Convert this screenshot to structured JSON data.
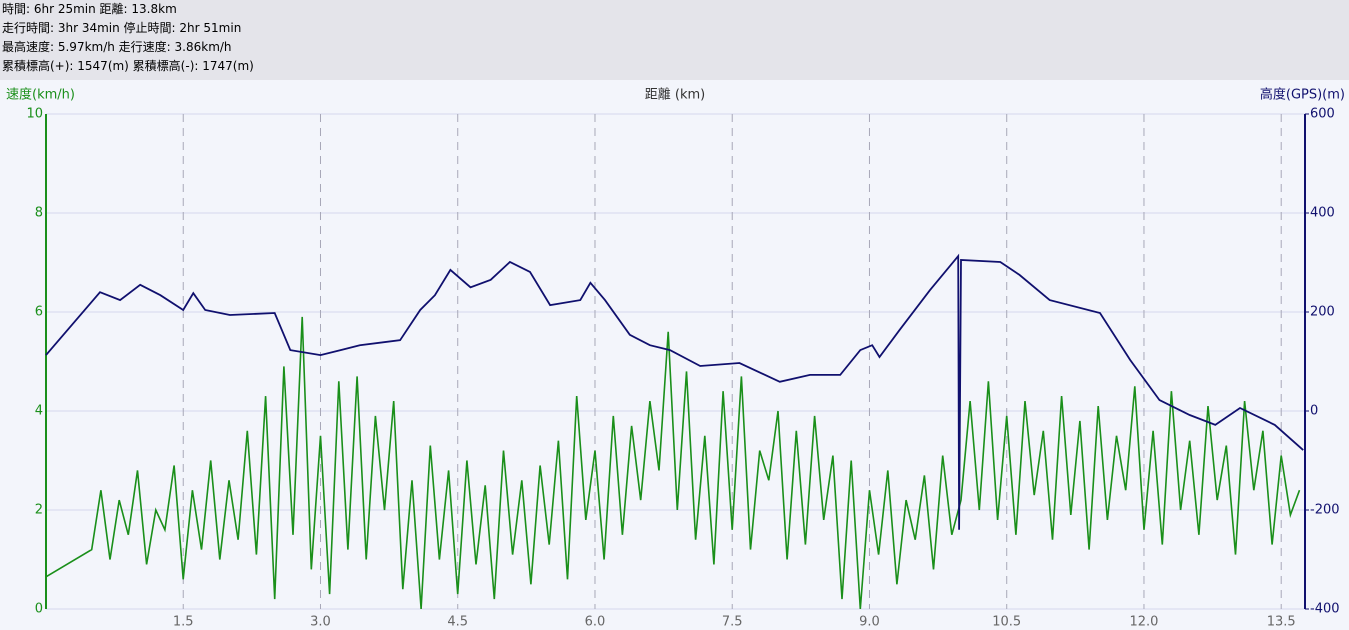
{
  "chart_data": {
    "type": "line",
    "header_lines": [
      "時間: 6hr 25min 距離: 13.8km",
      "走行時間: 3hr 34min 停止時間: 2hr 51min",
      "最高速度: 5.97km/h 走行速度: 3.86km/h",
      "累積標高(+): 1547(m) 累積標高(-): 1747(m)"
    ],
    "y_label": "速度(km/h)",
    "x_label": "距離 (km)",
    "y2_label": "高度(GPS)(m)",
    "xlim": [
      0,
      13.76
    ],
    "ylim": [
      0,
      10
    ],
    "y2lim": [
      -400,
      600
    ],
    "xticks": [
      1.5,
      {
        "value": 3,
        "label": "3.0"
      },
      4.5,
      {
        "value": 6,
        "label": "6.0"
      },
      7.5,
      {
        "value": 9,
        "label": "9.0"
      },
      10.5,
      {
        "value": 12,
        "label": "12.0"
      },
      13.5
    ],
    "yticks": [
      0,
      2,
      4,
      6,
      8,
      10
    ],
    "y2ticks": [
      -400,
      -200,
      0,
      200,
      400,
      600
    ],
    "grid": true,
    "series": [
      {
        "name": "速度",
        "color": "#1a8f1a",
        "axis": "y",
        "x": [
          0,
          0.5,
          0.6,
          0.7,
          0.8,
          0.9,
          1.0,
          1.1,
          1.2,
          1.3,
          1.4,
          1.5,
          1.6,
          1.7,
          1.8,
          1.9,
          2.0,
          2.1,
          2.2,
          2.3,
          2.4,
          2.5,
          2.6,
          2.7,
          2.8,
          2.9,
          3.0,
          3.1,
          3.2,
          3.3,
          3.4,
          3.5,
          3.6,
          3.7,
          3.8,
          3.9,
          4.0,
          4.1,
          4.2,
          4.3,
          4.4,
          4.5,
          4.6,
          4.7,
          4.8,
          4.9,
          5.0,
          5.1,
          5.2,
          5.3,
          5.4,
          5.5,
          5.6,
          5.7,
          5.8,
          5.9,
          6.0,
          6.1,
          6.2,
          6.3,
          6.4,
          6.5,
          6.6,
          6.7,
          6.8,
          6.9,
          7.0,
          7.1,
          7.2,
          7.3,
          7.4,
          7.5,
          7.6,
          7.7,
          7.8,
          7.9,
          8.0,
          8.1,
          8.2,
          8.3,
          8.4,
          8.5,
          8.6,
          8.7,
          8.8,
          8.9,
          9.0,
          9.1,
          9.2,
          9.3,
          9.4,
          9.5,
          9.6,
          9.7,
          9.8,
          9.9,
          10.0,
          10.1,
          10.2,
          10.3,
          10.4,
          10.5,
          10.6,
          10.7,
          10.8,
          10.9,
          11.0,
          11.1,
          11.2,
          11.3,
          11.4,
          11.5,
          11.6,
          11.7,
          11.8,
          11.9,
          12.0,
          12.1,
          12.2,
          12.3,
          12.4,
          12.5,
          12.6,
          12.7,
          12.8,
          12.9,
          13.0,
          13.1,
          13.2,
          13.3,
          13.4,
          13.5,
          13.6,
          13.7
        ],
        "values": [
          0.65,
          1.2,
          2.4,
          1.0,
          2.2,
          1.5,
          2.8,
          0.9,
          2.0,
          1.6,
          2.9,
          0.6,
          2.4,
          1.2,
          3.0,
          1.0,
          2.6,
          1.4,
          3.6,
          1.1,
          4.3,
          0.2,
          4.9,
          1.5,
          5.9,
          0.8,
          3.5,
          0.3,
          4.6,
          1.2,
          4.7,
          1.0,
          3.9,
          2.0,
          4.2,
          0.4,
          2.6,
          0.0,
          3.3,
          1.0,
          2.8,
          0.3,
          3.0,
          0.9,
          2.5,
          0.2,
          3.2,
          1.1,
          2.6,
          0.5,
          2.9,
          1.3,
          3.4,
          0.6,
          4.3,
          1.8,
          3.2,
          1.0,
          3.9,
          1.5,
          3.7,
          2.2,
          4.2,
          2.8,
          5.6,
          2.0,
          4.8,
          1.4,
          3.5,
          0.9,
          4.4,
          1.6,
          4.7,
          1.2,
          3.2,
          2.6,
          4.0,
          1.0,
          3.6,
          1.3,
          3.9,
          1.8,
          3.1,
          0.2,
          3.0,
          0.0,
          2.4,
          1.1,
          2.8,
          0.5,
          2.2,
          1.4,
          2.7,
          0.8,
          3.1,
          1.5,
          2.2,
          4.2,
          2.0,
          4.6,
          1.8,
          3.9,
          1.5,
          4.2,
          2.3,
          3.6,
          1.4,
          4.3,
          1.9,
          3.8,
          1.2,
          4.1,
          1.8,
          3.5,
          2.4,
          4.5,
          1.6,
          3.6,
          1.3,
          4.4,
          2.0,
          3.4,
          1.5,
          4.1,
          2.2,
          3.3,
          1.1,
          4.2,
          2.4,
          3.6,
          1.3,
          3.1,
          1.9,
          2.4
        ]
      },
      {
        "name": "高度",
        "color": "#10106e",
        "axis": "y2",
        "x": [
          0,
          0.59,
          0.81,
          1.03,
          1.25,
          1.5,
          1.61,
          1.74,
          2.01,
          2.5,
          2.67,
          3.0,
          3.22,
          3.43,
          3.87,
          4.09,
          4.25,
          4.42,
          4.64,
          4.86,
          5.07,
          5.29,
          5.51,
          5.84,
          5.95,
          6.11,
          6.38,
          6.6,
          6.82,
          7.15,
          7.58,
          8.02,
          8.35,
          8.68,
          8.9,
          9.03,
          9.11,
          9.33,
          9.66,
          9.97,
          9.98,
          10.0,
          10.43,
          10.64,
          10.97,
          11.52,
          11.85,
          12.17,
          12.5,
          12.78,
          13.05,
          13.43,
          13.74
        ],
        "values": [
          113,
          240,
          224,
          255,
          234,
          204,
          238,
          204,
          194,
          198,
          123,
          113,
          123,
          133,
          143,
          204,
          234,
          285,
          250,
          265,
          301,
          281,
          214,
          224,
          259,
          224,
          154,
          133,
          123,
          91,
          97,
          59,
          73,
          73,
          123,
          133,
          109,
          164,
          244,
          313,
          -240,
          305,
          301,
          275,
          224,
          198,
          103,
          22,
          -8,
          -28,
          6,
          -28,
          -79
        ]
      }
    ]
  }
}
